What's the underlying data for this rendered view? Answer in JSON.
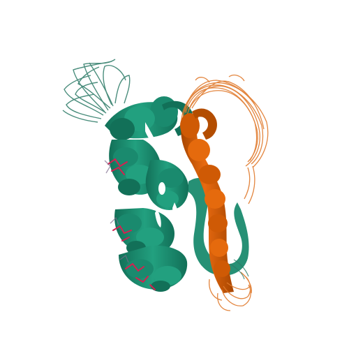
{
  "scene": {
    "background": "#ffffff",
    "colors": {
      "chain_a": "#1a8a6e",
      "chain_a_dark": "#127058",
      "chain_a_light": "#2aa384",
      "chain_b": "#d95f02",
      "chain_b_dark": "#b34d00",
      "chain_b_light": "#ef8a3a",
      "ligand": "#d62050",
      "coil_a": "#2b7a66",
      "coil_b": "#e07a2c"
    }
  }
}
